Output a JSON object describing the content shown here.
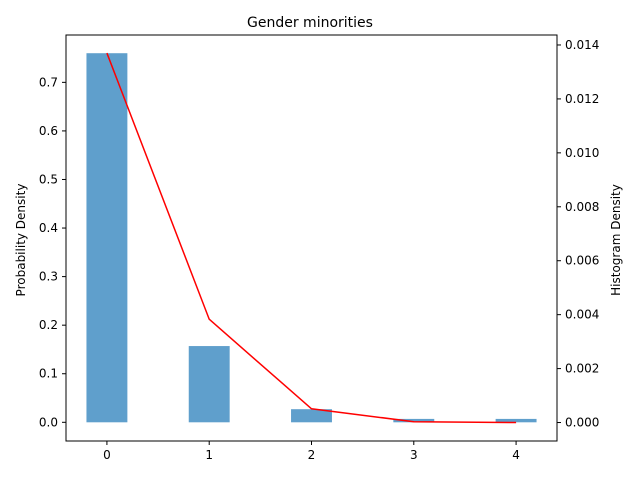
{
  "chart_data": {
    "type": "bar",
    "title": "Gender minorities",
    "xlabel": "",
    "ylabel": "Probability Density",
    "ylabel_right": "Histogram Density",
    "x": [
      0,
      1,
      2,
      3,
      4
    ],
    "x_ticks": [
      "0",
      "1",
      "2",
      "3",
      "4"
    ],
    "xlim": [
      -0.4,
      4.4
    ],
    "grid": false,
    "legend": "none",
    "series": [
      {
        "type": "bar",
        "axis": "left",
        "color": "#5f9fcc",
        "values": [
          0.76,
          0.157,
          0.027,
          0.007,
          0.007
        ]
      },
      {
        "type": "line",
        "axis": "right",
        "color": "#ff0000",
        "values": [
          0.0137,
          0.00383,
          0.00051,
          3e-05,
          0.0
        ]
      }
    ],
    "y_left": {
      "lim": [
        -0.0385,
        0.7975
      ],
      "ticks": [
        0.0,
        0.1,
        0.2,
        0.3,
        0.4,
        0.5,
        0.6,
        0.7
      ],
      "tick_labels": [
        "0.0",
        "0.1",
        "0.2",
        "0.3",
        "0.4",
        "0.5",
        "0.6",
        "0.7"
      ]
    },
    "y_right": {
      "lim": [
        -0.000685,
        0.01437
      ],
      "ticks": [
        0.0,
        0.002,
        0.004,
        0.006,
        0.008,
        0.01,
        0.012,
        0.014
      ],
      "tick_labels": [
        "0.000",
        "0.002",
        "0.004",
        "0.006",
        "0.008",
        "0.010",
        "0.012",
        "0.014"
      ]
    }
  }
}
